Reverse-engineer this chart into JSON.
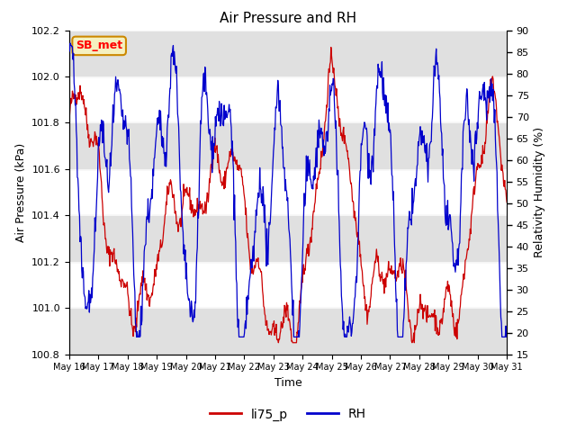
{
  "title": "Air Pressure and RH",
  "xlabel": "Time",
  "ylabel_left": "Air Pressure (kPa)",
  "ylabel_right": "Relativity Humidity (%)",
  "ylim_left": [
    100.8,
    102.2
  ],
  "ylim_right": [
    15,
    90
  ],
  "yticks_left": [
    100.8,
    101.0,
    101.2,
    101.4,
    101.6,
    101.8,
    102.0,
    102.2
  ],
  "yticks_right": [
    15,
    20,
    25,
    30,
    35,
    40,
    45,
    50,
    55,
    60,
    65,
    70,
    75,
    80,
    85,
    90
  ],
  "xtick_labels": [
    "May 16",
    "May 17",
    "May 18",
    "May 19",
    "May 20",
    "May 21",
    "May 22",
    "May 23",
    "May 24",
    "May 25",
    "May 26",
    "May 27",
    "May 28",
    "May 29",
    "May 30",
    "May 31"
  ],
  "color_pressure": "#cc0000",
  "color_rh": "#0000cc",
  "legend_label_pressure": "li75_p",
  "legend_label_rh": "RH",
  "station_label": "SB_met",
  "bg_band_color": "#e0e0e0",
  "seed": 42,
  "n_points": 800
}
